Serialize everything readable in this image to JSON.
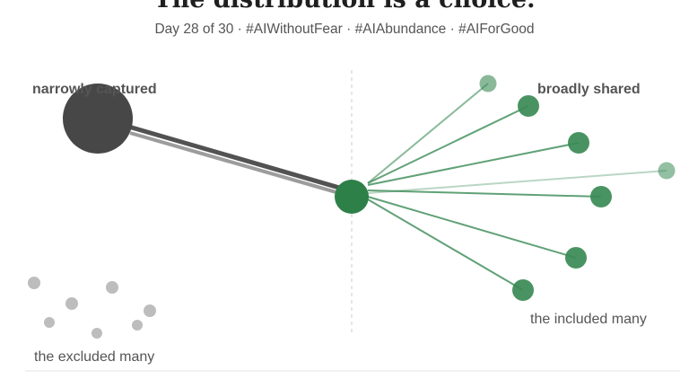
{
  "header": {
    "title": "The distribution is a choice.",
    "subtitle": "Day 28 of 30 · #AIWithoutFear · #AIAbundance · #AIForGood"
  },
  "diagram": {
    "label_captured": "narrowly captured",
    "label_shared": "broadly shared",
    "label_excluded": "the excluded many",
    "label_included": "the included many"
  },
  "colors": {
    "captured_node": "#474747",
    "center_node": "#2e8049",
    "shared_node": "#3a8a55",
    "excluded_dot": "#bdbdbd",
    "divider": "#e6e6e6"
  }
}
